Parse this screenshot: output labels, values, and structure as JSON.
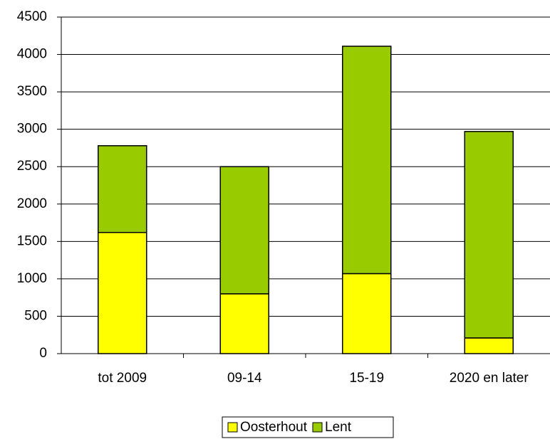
{
  "chart_data": {
    "type": "stacked_bar",
    "categories": [
      "tot 2009",
      "09-14",
      "15-19",
      "2020 en later"
    ],
    "series": [
      {
        "name": "Oosterhout",
        "color": "#ffff00",
        "values": [
          1620,
          800,
          1070,
          210
        ]
      },
      {
        "name": "Lent",
        "color": "#99cc00",
        "values": [
          1160,
          1700,
          3040,
          2760
        ]
      }
    ],
    "ylim": [
      0,
      4500
    ],
    "yticks": [
      0,
      500,
      1000,
      1500,
      2000,
      2500,
      3000,
      3500,
      4000,
      4500
    ],
    "grid": true,
    "legend": "bottom"
  }
}
